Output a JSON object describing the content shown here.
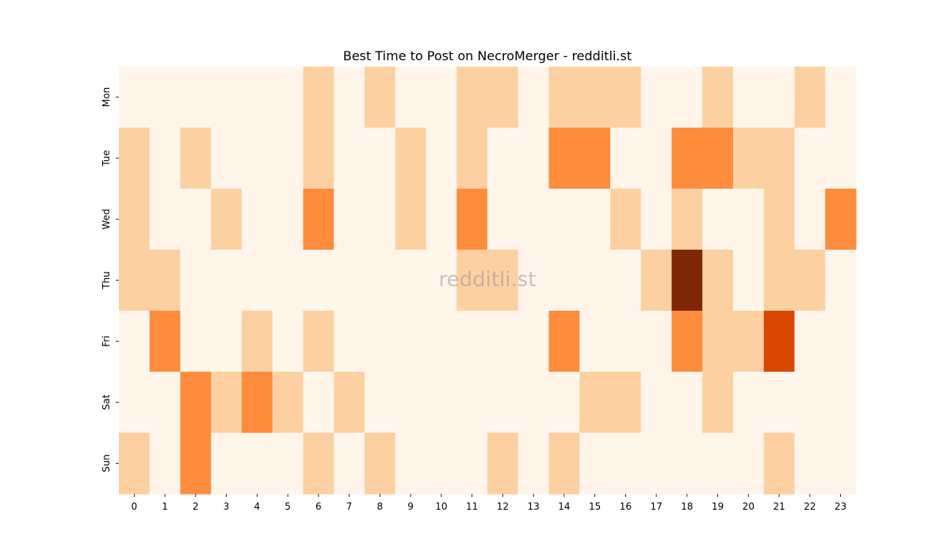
{
  "chart_data": {
    "type": "heatmap",
    "title": "Best Time to Post on NecroMerger - redditli.st",
    "xlabel": "",
    "ylabel": "",
    "x_categories": [
      "0",
      "1",
      "2",
      "3",
      "4",
      "5",
      "6",
      "7",
      "8",
      "9",
      "10",
      "11",
      "12",
      "13",
      "14",
      "15",
      "16",
      "17",
      "18",
      "19",
      "20",
      "21",
      "22",
      "23"
    ],
    "y_categories": [
      "Mon",
      "Tue",
      "Wed",
      "Thu",
      "Fri",
      "Sat",
      "Sun"
    ],
    "values": [
      [
        0,
        0,
        0,
        0,
        0,
        0,
        1,
        0,
        1,
        0,
        0,
        1,
        1,
        0,
        1,
        1,
        1,
        0,
        0,
        1,
        0,
        0,
        1,
        0
      ],
      [
        1,
        0,
        1,
        0,
        0,
        0,
        1,
        0,
        0,
        1,
        0,
        1,
        0,
        0,
        2,
        2,
        0,
        0,
        2,
        2,
        1,
        1,
        0,
        0
      ],
      [
        1,
        0,
        0,
        1,
        0,
        0,
        2,
        0,
        0,
        1,
        0,
        2,
        0,
        0,
        0,
        0,
        1,
        0,
        1,
        0,
        0,
        1,
        0,
        2
      ],
      [
        1,
        1,
        0,
        0,
        0,
        0,
        0,
        0,
        0,
        0,
        0,
        1,
        1,
        0,
        0,
        0,
        0,
        1,
        4,
        1,
        0,
        1,
        1,
        0
      ],
      [
        0,
        2,
        0,
        0,
        1,
        0,
        1,
        0,
        0,
        0,
        0,
        0,
        0,
        0,
        2,
        0,
        0,
        0,
        2,
        1,
        1,
        3,
        0,
        0
      ],
      [
        0,
        0,
        2,
        1,
        2,
        1,
        0,
        1,
        0,
        0,
        0,
        0,
        0,
        0,
        0,
        1,
        1,
        0,
        0,
        1,
        0,
        0,
        0,
        0
      ],
      [
        1,
        0,
        2,
        0,
        0,
        0,
        1,
        0,
        1,
        0,
        0,
        0,
        1,
        0,
        1,
        0,
        0,
        0,
        0,
        0,
        0,
        1,
        0,
        0
      ]
    ],
    "value_range": [
      0,
      4
    ],
    "color_scale": [
      "#fff5eb",
      "#fdd0a2",
      "#fd8d3c",
      "#d94801",
      "#7f2704"
    ],
    "colorbar": false,
    "grid": false,
    "watermark": "redditli.st"
  }
}
